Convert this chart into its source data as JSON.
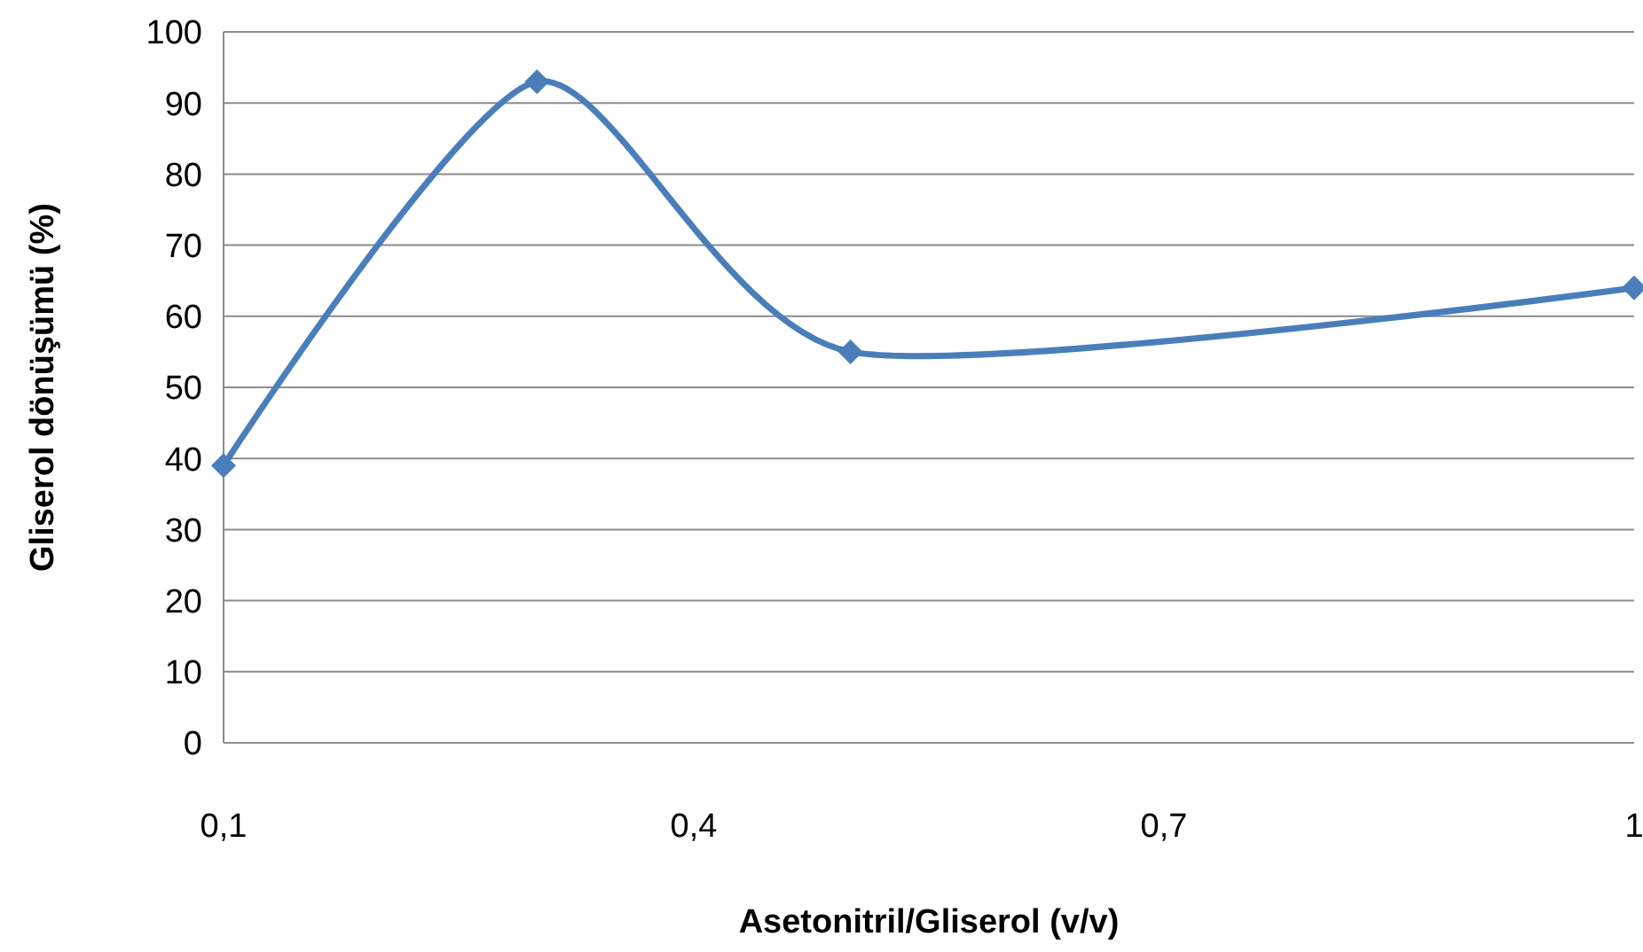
{
  "chart_data": {
    "type": "line",
    "xlabel": "Asetonitril/Gliserol (v/v)",
    "ylabel": "Gliserol dönüşümü (%)",
    "x": [
      0.1,
      0.3,
      0.5,
      1
    ],
    "series": [
      {
        "color": "#4a7ebb",
        "values": [
          39,
          93,
          55,
          64
        ]
      }
    ],
    "xlim": [
      0.1,
      1
    ],
    "xticks": [
      {
        "value": 0.1,
        "label": "0,1"
      },
      {
        "value": 0.4,
        "label": "0,4"
      },
      {
        "value": 0.7,
        "label": "0,7"
      },
      1
    ],
    "ylim": [
      0,
      100
    ],
    "yticks": [
      0,
      10,
      20,
      30,
      40,
      50,
      60,
      70,
      80,
      90,
      100
    ],
    "grid": "y",
    "marker": "diamond",
    "line_style": "solid"
  }
}
